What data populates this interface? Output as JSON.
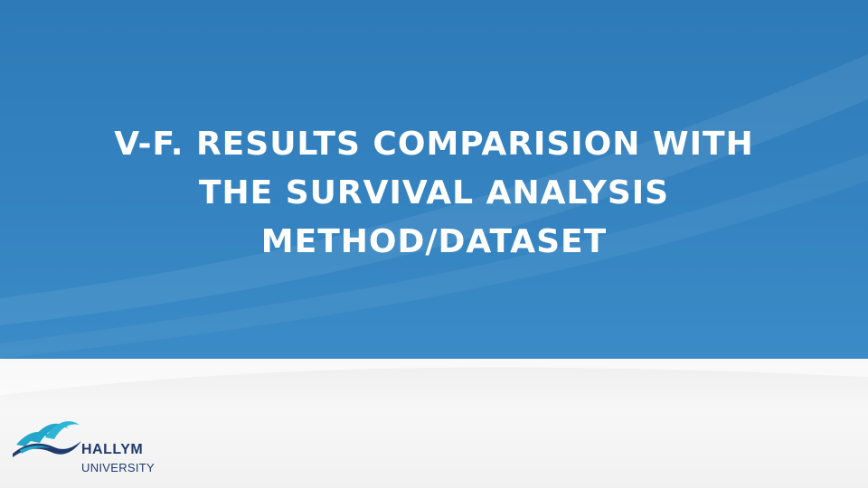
{
  "slide": {
    "title_lines": [
      "V-F. RESULTS COMPARISION WITH",
      "THE SURVIVAL ANALYSIS",
      "METHOD/DATASET"
    ],
    "logo": {
      "name": "HALLYM",
      "subtitle": "UNIVERSITY",
      "icon": "hallym-waves-icon"
    },
    "colors": {
      "top_band": "#3483c0",
      "bottom_band": "#f3f3f3",
      "title_text": "#ffffff",
      "logo_text": "#1f3b6e",
      "logo_wave_teal": "#23a7c9",
      "logo_wave_navy": "#1f3b6e"
    }
  }
}
